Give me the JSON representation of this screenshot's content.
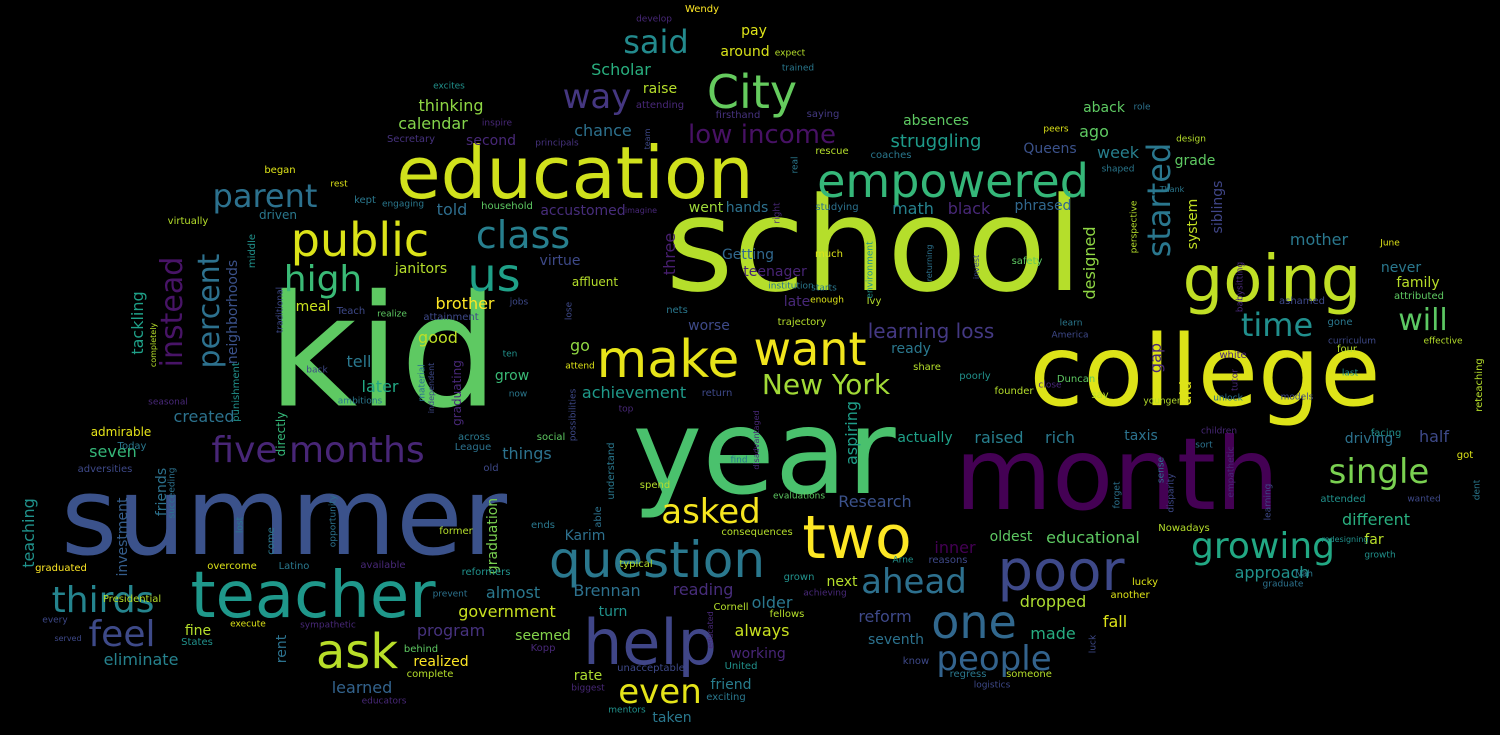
{
  "title": "",
  "background": "#000000",
  "palette": "viridis",
  "words": [
    {
      "text": "kid",
      "color": "#5ec962"
    },
    {
      "text": "school",
      "color": "#b5de2b"
    },
    {
      "text": "year",
      "color": "#4ac16d"
    },
    {
      "text": "summer",
      "color": "#3b528b"
    },
    {
      "text": "month",
      "color": "#440154"
    },
    {
      "text": "college",
      "color": "#dde318"
    },
    {
      "text": "education",
      "color": "#d0e11c"
    },
    {
      "text": "teacher",
      "color": "#1f988b"
    },
    {
      "text": "help",
      "color": "#404688"
    },
    {
      "text": "two",
      "color": "#fde725"
    },
    {
      "text": "poor",
      "color": "#3e4989"
    },
    {
      "text": "question",
      "color": "#2a788e"
    },
    {
      "text": "empowered",
      "color": "#35b779"
    },
    {
      "text": "going",
      "color": "#c0df25"
    },
    {
      "text": "City",
      "color": "#65cb5e"
    },
    {
      "text": "public",
      "color": "#dce319"
    },
    {
      "text": "make",
      "color": "#e7e419"
    },
    {
      "text": "want",
      "color": "#f1e51d"
    },
    {
      "text": "ask",
      "color": "#b8de29"
    },
    {
      "text": "one",
      "color": "#31688e"
    },
    {
      "text": "five months",
      "color": "#482677"
    },
    {
      "text": "thirds",
      "color": "#25848e"
    },
    {
      "text": "us",
      "color": "#1fa188"
    },
    {
      "text": "high",
      "color": "#3aba76"
    },
    {
      "text": "class",
      "color": "#277f8e"
    },
    {
      "text": "parent",
      "color": "#2c718e"
    },
    {
      "text": "feel",
      "color": "#3e4a89"
    },
    {
      "text": "people",
      "color": "#33638d"
    },
    {
      "text": "growing",
      "color": "#22a884"
    },
    {
      "text": "said",
      "color": "#238a8d"
    },
    {
      "text": "way",
      "color": "#453781"
    },
    {
      "text": "single",
      "color": "#7ad151"
    },
    {
      "text": "even",
      "color": "#e5e419"
    },
    {
      "text": "asked",
      "color": "#f6e620"
    },
    {
      "text": "ahead",
      "color": "#2d708e"
    },
    {
      "text": "started",
      "color": "#2a778e"
    },
    {
      "text": "instead",
      "color": "#481467"
    },
    {
      "text": "percent",
      "color": "#2d718e"
    },
    {
      "text": "New York",
      "color": "#a2da37"
    },
    {
      "text": "time",
      "color": "#218f8d"
    },
    {
      "text": "will",
      "color": "#5cc863"
    },
    {
      "text": "low income",
      "color": "#471164"
    },
    {
      "text": "learning loss",
      "color": "#443983"
    },
    {
      "text": "struggling",
      "color": "#1e9b8a"
    },
    {
      "text": "Scholar",
      "color": "#29af7f"
    },
    {
      "text": "chance",
      "color": "#2d718e"
    },
    {
      "text": "thinking",
      "color": "#8fd744"
    },
    {
      "text": "calendar",
      "color": "#84d44b"
    },
    {
      "text": "absences",
      "color": "#5ec962"
    },
    {
      "text": "raise",
      "color": "#b5de2b"
    },
    {
      "text": "around",
      "color": "#d8e219"
    },
    {
      "text": "pay",
      "color": "#dde318"
    },
    {
      "text": "second",
      "color": "#482878"
    },
    {
      "text": "tackling",
      "color": "#1fa088"
    },
    {
      "text": "neighborhoods",
      "color": "#3b528b"
    },
    {
      "text": "janitors",
      "color": "#b5de2b"
    },
    {
      "text": "brother",
      "color": "#fde725"
    },
    {
      "text": "good",
      "color": "#bddf26"
    },
    {
      "text": "tell",
      "color": "#2a788e"
    },
    {
      "text": "later",
      "color": "#22a884"
    },
    {
      "text": "created",
      "color": "#2c728e"
    },
    {
      "text": "seven",
      "color": "#35b779"
    },
    {
      "text": "admirable",
      "color": "#e5e419"
    },
    {
      "text": "graduated",
      "color": "#fde725"
    },
    {
      "text": "teaching",
      "color": "#20928c"
    },
    {
      "text": "investment",
      "color": "#355e8d"
    },
    {
      "text": "eliminate",
      "color": "#26828e"
    },
    {
      "text": "fine",
      "color": "#b5de2b"
    },
    {
      "text": "learned",
      "color": "#33638d"
    },
    {
      "text": "realized",
      "color": "#fde725"
    },
    {
      "text": "program",
      "color": "#46327e"
    },
    {
      "text": "government",
      "color": "#c8e020"
    },
    {
      "text": "almost",
      "color": "#2a788e"
    },
    {
      "text": "Brennan",
      "color": "#2d718e"
    },
    {
      "text": "reading",
      "color": "#472d7b"
    },
    {
      "text": "turn",
      "color": "#20938c"
    },
    {
      "text": "seemed",
      "color": "#84d44b"
    },
    {
      "text": "achievement",
      "color": "#1f9a8a"
    },
    {
      "text": "go",
      "color": "#90d743"
    },
    {
      "text": "things",
      "color": "#2c728e"
    },
    {
      "text": "raised",
      "color": "#277f8e"
    },
    {
      "text": "rich",
      "color": "#2a788e"
    },
    {
      "text": "actually",
      "color": "#1fa088"
    },
    {
      "text": "aspiring",
      "color": "#1f9e89"
    },
    {
      "text": "Research",
      "color": "#3b528b"
    },
    {
      "text": "inner",
      "color": "#440154"
    },
    {
      "text": "oldest",
      "color": "#5ec962"
    },
    {
      "text": "educational",
      "color": "#5ec962"
    },
    {
      "text": "approach",
      "color": "#21918c"
    },
    {
      "text": "reform",
      "color": "#3e4989"
    },
    {
      "text": "seventh",
      "color": "#2c728e"
    },
    {
      "text": "made",
      "color": "#27ad81"
    },
    {
      "text": "dropped",
      "color": "#addc30"
    },
    {
      "text": "fall",
      "color": "#dde318"
    },
    {
      "text": "older",
      "color": "#2a788e"
    },
    {
      "text": "always",
      "color": "#c8e020"
    },
    {
      "text": "working",
      "color": "#482677"
    },
    {
      "text": "friend",
      "color": "#287d8e"
    },
    {
      "text": "rate",
      "color": "#addc30"
    },
    {
      "text": "taken",
      "color": "#2a788e"
    },
    {
      "text": "three",
      "color": "#481f70"
    },
    {
      "text": "Getting",
      "color": "#31688e"
    },
    {
      "text": "teenager",
      "color": "#482475"
    },
    {
      "text": "late",
      "color": "#482878"
    },
    {
      "text": "worse",
      "color": "#3e4a89"
    },
    {
      "text": "math",
      "color": "#26828e"
    },
    {
      "text": "black",
      "color": "#482878"
    },
    {
      "text": "told",
      "color": "#2e6e8e"
    },
    {
      "text": "accustomed",
      "color": "#472d7b"
    },
    {
      "text": "went",
      "color": "#9fda3a"
    },
    {
      "text": "hands",
      "color": "#2d718e"
    },
    {
      "text": "designed",
      "color": "#8fd744"
    },
    {
      "text": "system",
      "color": "#c2df23"
    },
    {
      "text": "week",
      "color": "#277f8e"
    },
    {
      "text": "ago",
      "color": "#5ec962"
    },
    {
      "text": "aback",
      "color": "#5ec962"
    },
    {
      "text": "Queens",
      "color": "#3b528b"
    },
    {
      "text": "phrased",
      "color": "#31688e"
    },
    {
      "text": "mother",
      "color": "#2a788e"
    },
    {
      "text": "never",
      "color": "#2a788e"
    },
    {
      "text": "family",
      "color": "#b8de29"
    },
    {
      "text": "siblings",
      "color": "#404688"
    },
    {
      "text": "grade",
      "color": "#5ec962"
    },
    {
      "text": "gap",
      "color": "#482878"
    },
    {
      "text": "aid",
      "color": "#dde318"
    },
    {
      "text": "half",
      "color": "#3e4a89"
    },
    {
      "text": "driving",
      "color": "#2c728e"
    },
    {
      "text": "taxis",
      "color": "#2c728e"
    },
    {
      "text": "different",
      "color": "#29af7f"
    },
    {
      "text": "far",
      "color": "#b8de29"
    },
    {
      "text": "next",
      "color": "#b5de2b"
    },
    {
      "text": "Karim",
      "color": "#2d708e"
    },
    {
      "text": "graduation",
      "color": "#7ad151"
    },
    {
      "text": "graduating",
      "color": "#482878"
    },
    {
      "text": "grow",
      "color": "#3aba76"
    },
    {
      "text": "virtue",
      "color": "#3e4a89"
    },
    {
      "text": "affluent",
      "color": "#b5de2b"
    },
    {
      "text": "friends",
      "color": "#2c728e"
    },
    {
      "text": "directly",
      "color": "#35b779"
    },
    {
      "text": "punishment",
      "color": "#21918c"
    },
    {
      "text": "middle",
      "color": "#21918c"
    },
    {
      "text": "driven",
      "color": "#2a788e"
    },
    {
      "text": "meal",
      "color": "#cae11f"
    },
    {
      "text": "attainment",
      "color": "#3e4989"
    },
    {
      "text": "household",
      "color": "#5ec962"
    },
    {
      "text": "Secretary",
      "color": "#46327e"
    },
    {
      "text": "principals",
      "color": "#46327e"
    },
    {
      "text": "attending",
      "color": "#482878"
    },
    {
      "text": "firsthand",
      "color": "#46327e"
    },
    {
      "text": "saying",
      "color": "#443983"
    },
    {
      "text": "rescue",
      "color": "#b5de2b"
    },
    {
      "text": "coaches",
      "color": "#2a788e"
    },
    {
      "text": "studying",
      "color": "#2c728e"
    },
    {
      "text": "safety",
      "color": "#5ec962"
    },
    {
      "text": "began",
      "color": "#dde318"
    },
    {
      "text": "virtually",
      "color": "#b5de2b"
    },
    {
      "text": "kept",
      "color": "#2a788e"
    },
    {
      "text": "engaging",
      "color": "#2a788e"
    },
    {
      "text": "rest",
      "color": "#dde318"
    },
    {
      "text": "Teach",
      "color": "#3e4989"
    },
    {
      "text": "realize",
      "color": "#5ec962"
    },
    {
      "text": "inspire",
      "color": "#482878"
    },
    {
      "text": "excites",
      "color": "#21918c"
    },
    {
      "text": "Wendy",
      "color": "#fde725"
    },
    {
      "text": "develop",
      "color": "#482878"
    },
    {
      "text": "expect",
      "color": "#b5de2b"
    },
    {
      "text": "trained",
      "color": "#2a788e"
    },
    {
      "text": "role",
      "color": "#2c728e"
    },
    {
      "text": "design",
      "color": "#b5de2b"
    },
    {
      "text": "peers",
      "color": "#dde318"
    },
    {
      "text": "shaped",
      "color": "#2a788e"
    },
    {
      "text": "June",
      "color": "#dde318"
    },
    {
      "text": "attributed",
      "color": "#5ec962"
    },
    {
      "text": "ashamed",
      "color": "#3e4989"
    },
    {
      "text": "gone",
      "color": "#2a788e"
    },
    {
      "text": "curriculum",
      "color": "#3e4989"
    },
    {
      "text": "effective",
      "color": "#b5de2b"
    },
    {
      "text": "reteaching",
      "color": "#b5de2b"
    },
    {
      "text": "white",
      "color": "#482878"
    },
    {
      "text": "four",
      "color": "#b5de2b"
    },
    {
      "text": "last",
      "color": "#21918c"
    },
    {
      "text": "unlock",
      "color": "#2c728e"
    },
    {
      "text": "models",
      "color": "#3e4989"
    },
    {
      "text": "facing",
      "color": "#21918c"
    },
    {
      "text": "got",
      "color": "#dde318"
    },
    {
      "text": "children",
      "color": "#482878"
    },
    {
      "text": "wanted",
      "color": "#3e4989"
    },
    {
      "text": "learning",
      "color": "#3e4989"
    },
    {
      "text": "attended",
      "color": "#21918c"
    },
    {
      "text": "Nowadays",
      "color": "#b5de2b"
    },
    {
      "text": "redesigning",
      "color": "#21918c"
    },
    {
      "text": "growth",
      "color": "#21918c"
    },
    {
      "text": "Nah",
      "color": "#2a788e"
    },
    {
      "text": "graduate",
      "color": "#2c728e"
    },
    {
      "text": "lucky",
      "color": "#dde318"
    },
    {
      "text": "another",
      "color": "#dde318"
    },
    {
      "text": "say",
      "color": "#b5de2b"
    },
    {
      "text": "younger",
      "color": "#b5de2b"
    },
    {
      "text": "founder",
      "color": "#b5de2b"
    },
    {
      "text": "close",
      "color": "#482878"
    },
    {
      "text": "Duncan",
      "color": "#5ec962"
    },
    {
      "text": "learn",
      "color": "#2a788e"
    },
    {
      "text": "America",
      "color": "#3e4989"
    },
    {
      "text": "Ivy",
      "color": "#b5de2b"
    },
    {
      "text": "enough",
      "color": "#dde318"
    },
    {
      "text": "starts",
      "color": "#2a788e"
    },
    {
      "text": "much",
      "color": "#dde318"
    },
    {
      "text": "environment",
      "color": "#21918c"
    },
    {
      "text": "real",
      "color": "#2a788e"
    },
    {
      "text": "right",
      "color": "#482878"
    },
    {
      "text": "returning",
      "color": "#2c728e"
    },
    {
      "text": "ready",
      "color": "#2a788e"
    },
    {
      "text": "share",
      "color": "#b5de2b"
    },
    {
      "text": "poorly",
      "color": "#21918c"
    },
    {
      "text": "institution",
      "color": "#2a788e"
    },
    {
      "text": "trajectory",
      "color": "#b5de2b"
    },
    {
      "text": "nets",
      "color": "#2a788e"
    },
    {
      "text": "return",
      "color": "#3e4989"
    },
    {
      "text": "disadvantaged",
      "color": "#482878"
    },
    {
      "text": "evaluations",
      "color": "#5ec962"
    },
    {
      "text": "find",
      "color": "#2a788e"
    },
    {
      "text": "spend",
      "color": "#b5de2b"
    },
    {
      "text": "typical",
      "color": "#b5de2b"
    },
    {
      "text": "consequences",
      "color": "#b5de2b"
    },
    {
      "text": "reasons",
      "color": "#3e4989"
    },
    {
      "text": "Arne",
      "color": "#21918c"
    },
    {
      "text": "empathetic",
      "color": "#482878"
    },
    {
      "text": "sense",
      "color": "#2c728e"
    },
    {
      "text": "disparity",
      "color": "#3e4989"
    },
    {
      "text": "forget",
      "color": "#2c728e"
    },
    {
      "text": "luck",
      "color": "#3e4989"
    },
    {
      "text": "tutor",
      "color": "#482878"
    },
    {
      "text": "perspective",
      "color": "#b5de2b"
    },
    {
      "text": "invest",
      "color": "#3e4989"
    },
    {
      "text": "babysitting",
      "color": "#482878"
    },
    {
      "text": "Thank",
      "color": "#2a788e"
    },
    {
      "text": "sort",
      "color": "#2c728e"
    },
    {
      "text": "know",
      "color": "#3e4989"
    },
    {
      "text": "regress",
      "color": "#2a788e"
    },
    {
      "text": "someone",
      "color": "#b5de2b"
    },
    {
      "text": "logistics",
      "color": "#3e4989"
    },
    {
      "text": "grown",
      "color": "#21918c"
    },
    {
      "text": "achieving",
      "color": "#482878"
    },
    {
      "text": "fellows",
      "color": "#b5de2b"
    },
    {
      "text": "Cornell",
      "color": "#b5de2b"
    },
    {
      "text": "United",
      "color": "#21918c"
    },
    {
      "text": "unacceptable",
      "color": "#3e4989"
    },
    {
      "text": "exciting",
      "color": "#2a788e"
    },
    {
      "text": "educated",
      "color": "#482878"
    },
    {
      "text": "mentors",
      "color": "#21918c"
    },
    {
      "text": "biggest",
      "color": "#482878"
    },
    {
      "text": "complete",
      "color": "#b5de2b"
    },
    {
      "text": "Kopp",
      "color": "#482878"
    },
    {
      "text": "reformers",
      "color": "#21918c"
    },
    {
      "text": "prevent",
      "color": "#2c728e"
    },
    {
      "text": "behind",
      "color": "#5ec962"
    },
    {
      "text": "available",
      "color": "#482878"
    },
    {
      "text": "Latino",
      "color": "#2a788e"
    },
    {
      "text": "former",
      "color": "#b5de2b"
    },
    {
      "text": "ends",
      "color": "#2a788e"
    },
    {
      "text": "able",
      "color": "#2c728e"
    },
    {
      "text": "understand",
      "color": "#2a788e"
    },
    {
      "text": "possibilities",
      "color": "#3e4989"
    },
    {
      "text": "old",
      "color": "#3e4989"
    },
    {
      "text": "League",
      "color": "#2c728e"
    },
    {
      "text": "across",
      "color": "#2a788e"
    },
    {
      "text": "social",
      "color": "#5ec962"
    },
    {
      "text": "top",
      "color": "#482878"
    },
    {
      "text": "attend",
      "color": "#dde318"
    },
    {
      "text": "lose",
      "color": "#3e4989"
    },
    {
      "text": "jobs",
      "color": "#3e4989"
    },
    {
      "text": "ten",
      "color": "#21918c"
    },
    {
      "text": "now",
      "color": "#2a788e"
    },
    {
      "text": "material",
      "color": "#2c728e"
    },
    {
      "text": "independent",
      "color": "#3e4989"
    },
    {
      "text": "back",
      "color": "#3e4989"
    },
    {
      "text": "ambitions",
      "color": "#2a788e"
    },
    {
      "text": "traditional",
      "color": "#3e4989"
    },
    {
      "text": "completely",
      "color": "#b5de2b"
    },
    {
      "text": "seasonal",
      "color": "#482878"
    },
    {
      "text": "Today",
      "color": "#2a788e"
    },
    {
      "text": "adversities",
      "color": "#3e4989"
    },
    {
      "text": "succeeding",
      "color": "#2c728e"
    },
    {
      "text": "overcome",
      "color": "#dde318"
    },
    {
      "text": "Presidential",
      "color": "#b5de2b"
    },
    {
      "text": "every",
      "color": "#3e4989"
    },
    {
      "text": "served",
      "color": "#3e4989"
    },
    {
      "text": "execute",
      "color": "#dde318"
    },
    {
      "text": "States",
      "color": "#21918c"
    },
    {
      "text": "sympathetic",
      "color": "#482878"
    },
    {
      "text": "rent",
      "color": "#2c728e"
    },
    {
      "text": "come",
      "color": "#2a788e"
    },
    {
      "text": "lost",
      "color": "#2a788e"
    },
    {
      "text": "opportunity",
      "color": "#2c728e"
    },
    {
      "text": "educators",
      "color": "#482878"
    },
    {
      "text": "imagine",
      "color": "#482878"
    },
    {
      "text": "team",
      "color": "#3e4989"
    },
    {
      "text": "dent",
      "color": "#2a788e"
    }
  ]
}
